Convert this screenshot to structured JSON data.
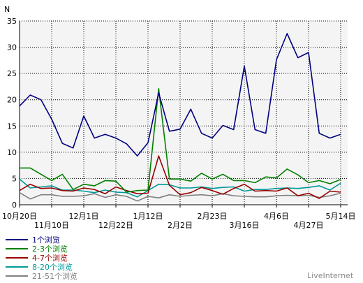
{
  "chart_data": {
    "type": "line",
    "ylabel": "N",
    "ylim": [
      0,
      35
    ],
    "yticks": [
      0,
      5,
      10,
      15,
      20,
      25,
      30,
      35
    ],
    "grid": true,
    "legend_position": "bottom-left",
    "tick_labels_row1": [
      "10月20日",
      "12月1日",
      "1月12日",
      "2月23日",
      "4月6日",
      "5月14日"
    ],
    "tick_labels_row2": [
      "11月10日",
      "12月22日",
      "2月2日",
      "3月16日",
      "4月27日"
    ],
    "watermark": "LiveInternet",
    "series": [
      {
        "name": "1个浏览",
        "color": "#000080",
        "values": [
          18.8,
          20.9,
          20.0,
          16.3,
          11.7,
          10.8,
          16.9,
          12.7,
          13.4,
          12.7,
          11.6,
          9.3,
          11.8,
          21.3,
          14.0,
          14.4,
          18.2,
          13.6,
          12.7,
          15.1,
          14.3,
          26.4,
          14.3,
          13.6,
          27.6,
          32.6,
          28.0,
          29.0,
          13.6,
          12.7,
          13.4
        ]
      },
      {
        "name": "2-3个浏览",
        "color": "#008000",
        "values": [
          7.0,
          7.0,
          5.8,
          4.6,
          5.8,
          2.9,
          3.9,
          3.6,
          4.6,
          4.5,
          2.4,
          2.7,
          2.8,
          22.1,
          4.9,
          4.9,
          4.5,
          6.0,
          4.9,
          5.8,
          4.6,
          4.6,
          4.2,
          5.3,
          5.1,
          6.8,
          5.7,
          4.2,
          4.6,
          4.0,
          4.8
        ]
      },
      {
        "name": "4-7个浏览",
        "color": "#990000",
        "values": [
          2.7,
          3.9,
          3.1,
          3.2,
          2.7,
          2.6,
          3.2,
          2.9,
          2.1,
          3.4,
          2.7,
          2.1,
          2.2,
          9.3,
          3.7,
          1.9,
          2.3,
          3.3,
          2.7,
          2.0,
          3.1,
          3.9,
          2.6,
          2.7,
          2.6,
          3.2,
          1.7,
          2.2,
          1.2,
          2.6,
          2.4
        ]
      },
      {
        "name": "8-20个浏览",
        "color": "#009999",
        "values": [
          4.9,
          3.2,
          3.4,
          3.6,
          2.8,
          2.8,
          2.6,
          2.3,
          2.8,
          2.4,
          2.3,
          1.5,
          2.7,
          3.9,
          3.8,
          3.2,
          3.2,
          3.4,
          3.1,
          3.3,
          3.4,
          2.6,
          2.9,
          2.9,
          3.1,
          3.2,
          3.1,
          3.3,
          3.6,
          2.8,
          4.1
        ]
      },
      {
        "name": "21-51个浏览",
        "color": "#808080",
        "values": [
          2.3,
          1.1,
          1.9,
          1.9,
          1.6,
          1.6,
          1.7,
          2.1,
          1.4,
          1.9,
          1.6,
          0.7,
          1.6,
          1.3,
          1.9,
          1.6,
          1.8,
          1.9,
          1.7,
          2.1,
          1.7,
          1.6,
          1.5,
          1.5,
          1.7,
          1.8,
          1.7,
          1.8,
          1.4,
          1.7,
          2.2
        ]
      }
    ]
  }
}
